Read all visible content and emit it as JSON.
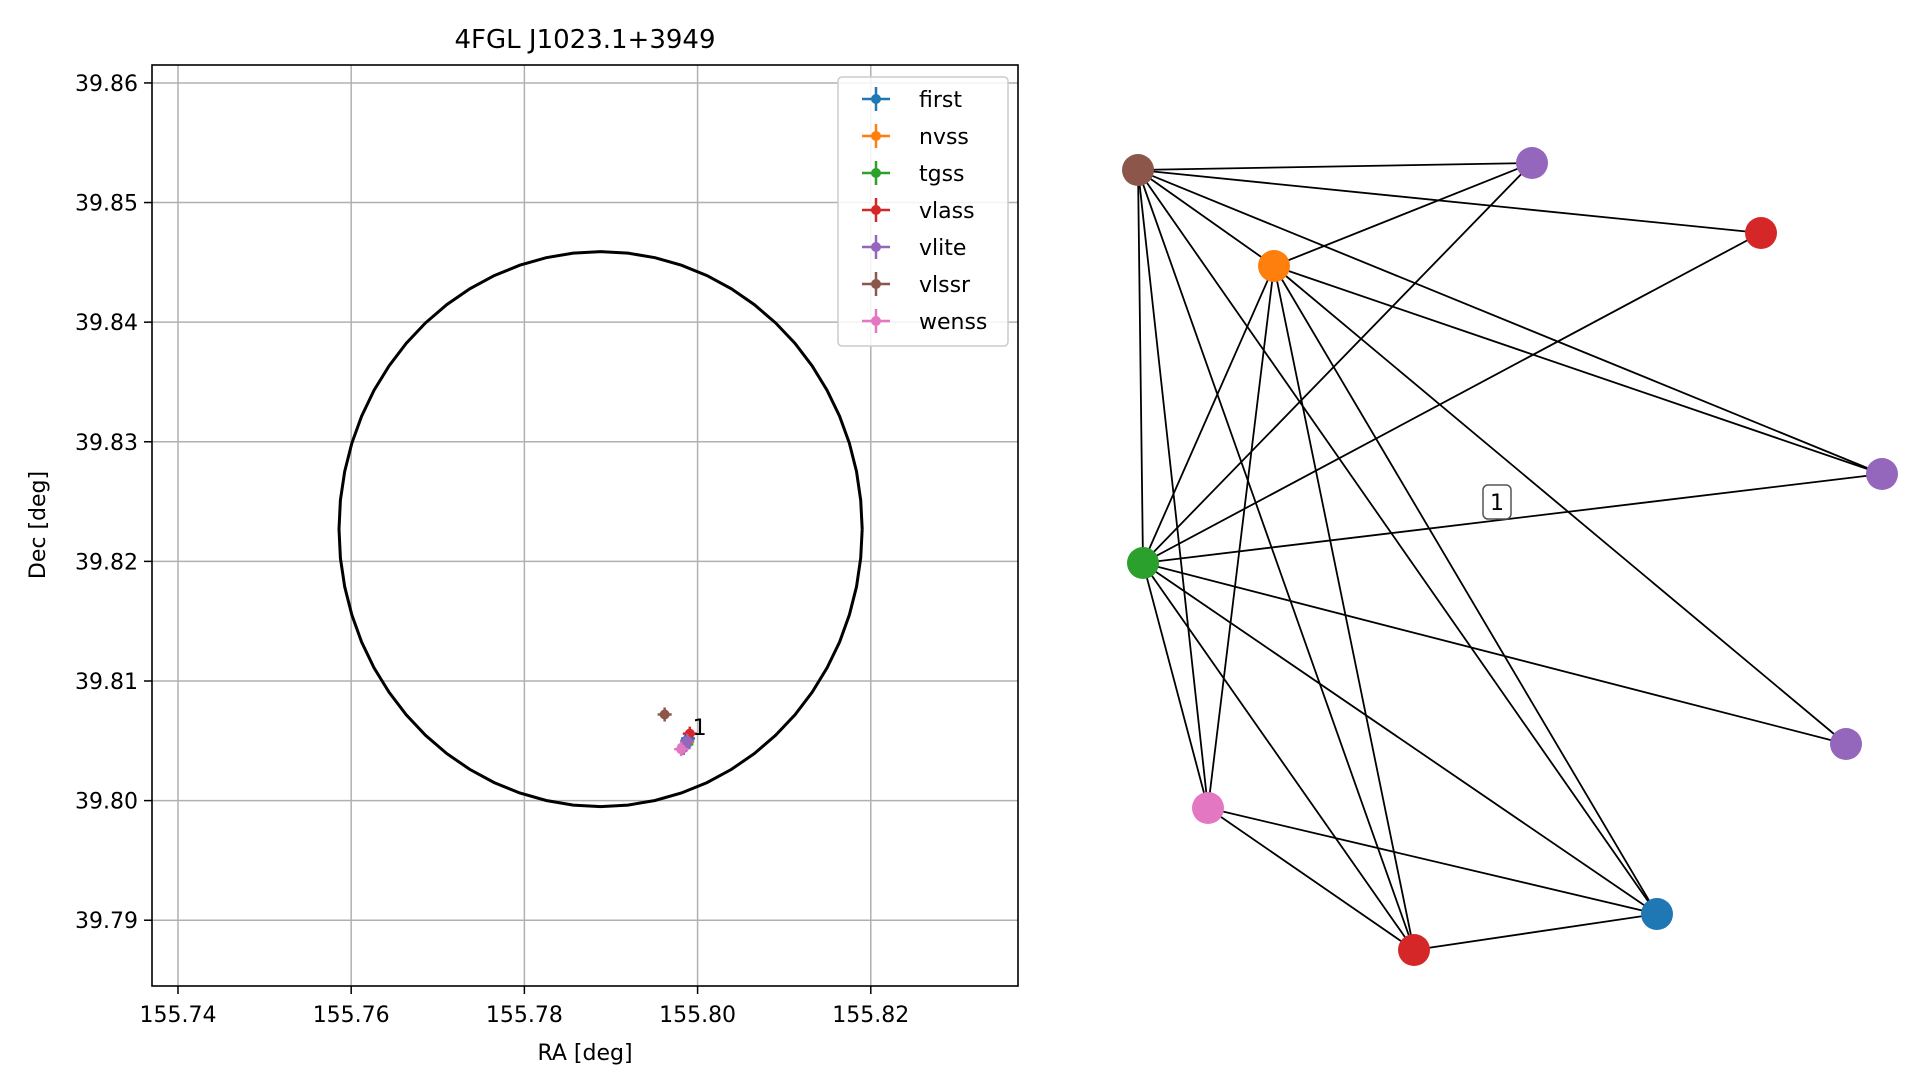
{
  "chart_data": [
    {
      "type": "scatter",
      "title": "4FGL J1023.1+3949",
      "xlabel": "RA [deg]",
      "ylabel": "Dec [deg]",
      "xlim": [
        155.737,
        155.837
      ],
      "ylim": [
        39.7845,
        39.8615
      ],
      "xticks": [
        "155.74",
        "155.76",
        "155.78",
        "155.80",
        "155.82"
      ],
      "xtick_values": [
        155.74,
        155.76,
        155.78,
        155.8,
        155.82
      ],
      "yticks": [
        "39.79",
        "39.80",
        "39.81",
        "39.82",
        "39.83",
        "39.84",
        "39.85",
        "39.86"
      ],
      "ytick_values": [
        39.79,
        39.8,
        39.81,
        39.82,
        39.83,
        39.84,
        39.85,
        39.86
      ],
      "grid": true,
      "legend_position": "upper-right",
      "circle": {
        "center_ra": 155.7888,
        "center_dec": 39.8227,
        "radius_deg": 0.0232,
        "color": "#000000"
      },
      "series": [
        {
          "name": "first",
          "color": "#1f77b4",
          "points": [
            [
              155.7989,
              39.8052
            ]
          ]
        },
        {
          "name": "nvss",
          "color": "#ff7f0e",
          "points": [
            [
              155.7988,
              39.8049
            ]
          ]
        },
        {
          "name": "tgss",
          "color": "#2ca02c",
          "points": [
            [
              155.7987,
              39.8047
            ]
          ]
        },
        {
          "name": "vlass",
          "color": "#d62728",
          "points": [
            [
              155.7991,
              39.8056
            ]
          ]
        },
        {
          "name": "vlite",
          "color": "#9467bd",
          "points": [
            [
              155.7985,
              39.8046
            ],
            [
              155.7988,
              39.805
            ],
            [
              155.7984,
              39.8044
            ]
          ]
        },
        {
          "name": "vlssr",
          "color": "#8c564b",
          "points": [
            [
              155.7962,
              39.8072
            ]
          ]
        },
        {
          "name": "wenss",
          "color": "#e377c2",
          "points": [
            [
              155.7981,
              39.8043
            ]
          ]
        }
      ],
      "annotations": [
        {
          "text": "1",
          "ra": 155.7992,
          "dec": 39.8063
        }
      ]
    },
    {
      "type": "network",
      "nodes": [
        {
          "id": "brown",
          "color": "#8c564b"
        },
        {
          "id": "purple-top",
          "color": "#9467bd"
        },
        {
          "id": "red-top",
          "color": "#d62728"
        },
        {
          "id": "orange",
          "color": "#ff7f0e"
        },
        {
          "id": "purple-right",
          "color": "#9467bd"
        },
        {
          "id": "green",
          "color": "#2ca02c"
        },
        {
          "id": "purple-low",
          "color": "#9467bd"
        },
        {
          "id": "pink",
          "color": "#e377c2"
        },
        {
          "id": "blue",
          "color": "#1f77b4"
        },
        {
          "id": "red-bottom",
          "color": "#d62728"
        }
      ],
      "edges": [
        [
          "brown",
          "purple-top"
        ],
        [
          "brown",
          "red-top"
        ],
        [
          "brown",
          "orange"
        ],
        [
          "brown",
          "purple-right"
        ],
        [
          "brown",
          "green"
        ],
        [
          "brown",
          "pink"
        ],
        [
          "brown",
          "blue"
        ],
        [
          "brown",
          "red-bottom"
        ],
        [
          "orange",
          "purple-top"
        ],
        [
          "orange",
          "purple-right"
        ],
        [
          "orange",
          "green"
        ],
        [
          "orange",
          "purple-low"
        ],
        [
          "orange",
          "pink"
        ],
        [
          "orange",
          "blue"
        ],
        [
          "orange",
          "red-bottom"
        ],
        [
          "green",
          "purple-top"
        ],
        [
          "green",
          "red-top"
        ],
        [
          "green",
          "purple-right"
        ],
        [
          "green",
          "purple-low"
        ],
        [
          "green",
          "pink"
        ],
        [
          "green",
          "blue"
        ],
        [
          "green",
          "red-bottom"
        ],
        [
          "pink",
          "blue"
        ],
        [
          "pink",
          "red-bottom"
        ],
        [
          "red-bottom",
          "blue"
        ]
      ],
      "edge_label": {
        "text": "1"
      }
    }
  ]
}
